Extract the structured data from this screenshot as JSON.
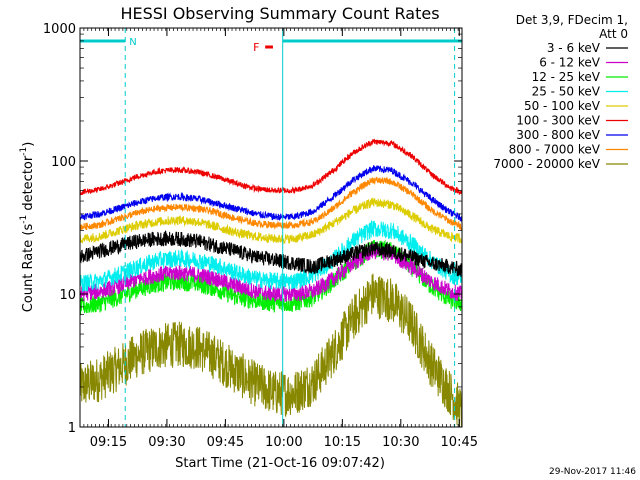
{
  "chart_data": {
    "type": "line",
    "title": "HESSI Observing Summary Count Rates",
    "xlabel": "Start Time (21-Oct-16 09:07:42)",
    "ylabel_main": "Count Rate (s",
    "ylabel_sup1": "-1",
    "ylabel_mid": " detector",
    "ylabel_sup2": "-1",
    "ylabel_end": ")",
    "yscale": "log",
    "xlim_minutes": [
      0,
      98
    ],
    "ylim": [
      1,
      1000
    ],
    "x_ticks": [
      {
        "label": "09:15",
        "minute": 7.3
      },
      {
        "label": "09:30",
        "minute": 22.3
      },
      {
        "label": "09:45",
        "minute": 37.3
      },
      {
        "label": "10:00",
        "minute": 52.3
      },
      {
        "label": "10:15",
        "minute": 67.3
      },
      {
        "label": "10:30",
        "minute": 82.3
      },
      {
        "label": "10:45",
        "minute": 97.3
      }
    ],
    "y_ticks": [
      {
        "label": "1",
        "value": 1
      },
      {
        "label": "10",
        "value": 10
      },
      {
        "label": "100",
        "value": 100
      },
      {
        "label": "1000",
        "value": 1000
      }
    ],
    "legend": {
      "header1": "Det 3,9, FDecim 1,",
      "header2": "Att 0",
      "placement": "right"
    },
    "series": [
      {
        "name": "3 - 6 keV",
        "color": "#000000",
        "x": [
          0,
          5,
          10,
          15,
          20,
          25,
          30,
          35,
          40,
          45,
          50,
          55,
          60,
          65,
          70,
          75,
          80,
          85,
          90,
          95,
          98
        ],
        "values": [
          19,
          21,
          23,
          25,
          26,
          26,
          25,
          23,
          21,
          19,
          18,
          17,
          16,
          18,
          20,
          22,
          21,
          19,
          17,
          16,
          15
        ]
      },
      {
        "name": "6 - 12 keV",
        "color": "#cc00cc",
        "x": [
          0,
          5,
          10,
          15,
          20,
          25,
          30,
          35,
          40,
          45,
          50,
          55,
          60,
          65,
          70,
          75,
          80,
          85,
          90,
          95,
          98
        ],
        "values": [
          10,
          10.5,
          11.5,
          13,
          14,
          14.5,
          14,
          13,
          11.5,
          10.5,
          10,
          10,
          10.5,
          13,
          17,
          21,
          20,
          16,
          12.5,
          10.5,
          10
        ]
      },
      {
        "name": "12 - 25 keV",
        "color": "#00ee00",
        "x": [
          0,
          5,
          10,
          15,
          20,
          25,
          30,
          35,
          40,
          45,
          50,
          55,
          60,
          65,
          70,
          75,
          80,
          85,
          90,
          95,
          98
        ],
        "values": [
          8,
          8.5,
          9.5,
          11,
          12,
          12.5,
          12,
          11,
          9.5,
          9,
          8.5,
          8.5,
          9.5,
          12.5,
          17,
          22,
          21,
          16,
          11.5,
          9,
          8.5
        ]
      },
      {
        "name": "25 - 50 keV",
        "color": "#00eeee",
        "x": [
          0,
          5,
          10,
          15,
          20,
          25,
          30,
          35,
          40,
          45,
          50,
          55,
          60,
          65,
          70,
          75,
          80,
          85,
          90,
          95,
          98
        ],
        "values": [
          12,
          12.5,
          14,
          16,
          18,
          18.5,
          18,
          16.5,
          14.5,
          13,
          12.5,
          12.5,
          14,
          18,
          25,
          31,
          30,
          24,
          18,
          14,
          13
        ]
      },
      {
        "name": "50 - 100 keV",
        "color": "#ddcc00",
        "x": [
          0,
          5,
          10,
          15,
          20,
          25,
          30,
          35,
          40,
          45,
          50,
          55,
          60,
          65,
          70,
          75,
          80,
          85,
          90,
          95,
          98
        ],
        "values": [
          26,
          27,
          30,
          33,
          35,
          36,
          35,
          32,
          29,
          27,
          26,
          26,
          28,
          34,
          42,
          49,
          47,
          39,
          31,
          27,
          26
        ]
      },
      {
        "name": "100 - 300 keV",
        "color": "#ee0000",
        "x": [
          0,
          5,
          10,
          15,
          20,
          25,
          30,
          35,
          40,
          45,
          50,
          55,
          60,
          65,
          70,
          75,
          80,
          85,
          90,
          95,
          98
        ],
        "values": [
          58,
          61,
          68,
          77,
          84,
          86,
          83,
          76,
          68,
          62,
          60,
          60,
          66,
          85,
          115,
          140,
          136,
          110,
          80,
          63,
          58
        ]
      },
      {
        "name": "300 - 800 keV",
        "color": "#0000ee",
        "x": [
          0,
          5,
          10,
          15,
          20,
          25,
          30,
          35,
          40,
          45,
          50,
          55,
          60,
          65,
          70,
          75,
          80,
          85,
          90,
          95,
          98
        ],
        "values": [
          38,
          40,
          44,
          49,
          53,
          54,
          52,
          48,
          44,
          40,
          38,
          38,
          42,
          54,
          72,
          88,
          85,
          69,
          52,
          41,
          37
        ]
      },
      {
        "name": "800 - 7000 keV",
        "color": "#ff8800",
        "x": [
          0,
          5,
          10,
          15,
          20,
          25,
          30,
          35,
          40,
          45,
          50,
          55,
          60,
          65,
          70,
          75,
          80,
          85,
          90,
          95,
          98
        ],
        "values": [
          32,
          33,
          37,
          41,
          44,
          45,
          44,
          41,
          37,
          34,
          33,
          33,
          35,
          44,
          58,
          72,
          70,
          57,
          43,
          35,
          32
        ]
      },
      {
        "name": "7000 - 20000 keV",
        "color": "#888800",
        "x": [
          0,
          5,
          10,
          15,
          20,
          25,
          30,
          35,
          40,
          45,
          50,
          55,
          60,
          65,
          70,
          75,
          80,
          85,
          90,
          95,
          98
        ],
        "values": [
          2,
          2.3,
          2.8,
          3.5,
          4,
          4.2,
          4,
          3.3,
          2.6,
          2.1,
          1.8,
          1.8,
          2.2,
          3.6,
          6.5,
          10,
          9,
          6,
          3,
          1.8,
          1.3
        ]
      }
    ],
    "annotations": [
      {
        "label": "N",
        "color": "#00cccc"
      },
      {
        "label": "F",
        "color": "#ee0000"
      }
    ],
    "spans": [
      {
        "kind": "N",
        "color": "#00cccc",
        "x_start": 0,
        "x_end": 11.6
      },
      {
        "kind": "N",
        "color": "#00cccc",
        "x_start": 52,
        "x_end": 98
      },
      {
        "kind": "F",
        "color": "#ee0000",
        "x_start": 47.5,
        "x_end": 49.5
      }
    ],
    "vlines_dashed_minutes": [
      11.6,
      96.1
    ],
    "vlines_solid_minutes": [
      0,
      52
    ]
  },
  "footer": {
    "date_stamp": "29-Nov-2017 11:46"
  }
}
